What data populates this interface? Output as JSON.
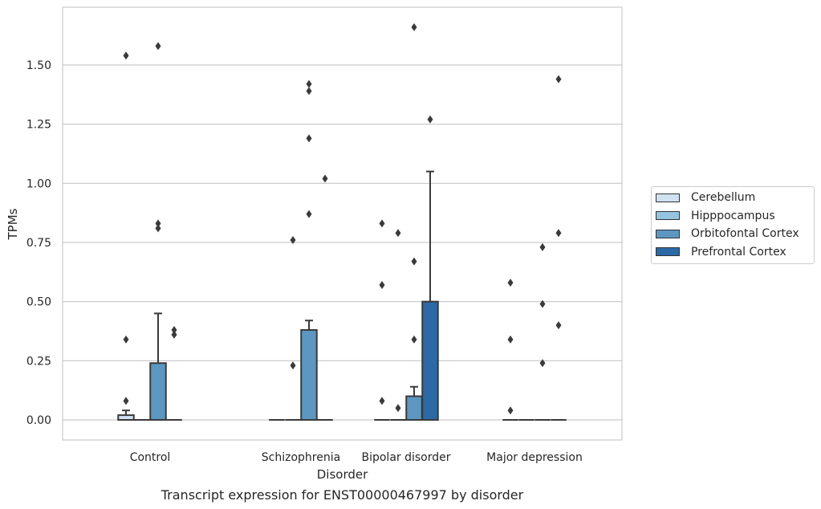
{
  "chart_data": {
    "type": "boxplot",
    "title": "Transcript expression for ENST00000467997 by disorder",
    "xlabel": "Disorder",
    "ylabel": "TPMs",
    "ylim": [
      -0.08,
      1.73
    ],
    "yticks": [
      0.0,
      0.25,
      0.5,
      0.75,
      1.0,
      1.25,
      1.5
    ],
    "ytick_labels": [
      "0.00",
      "0.25",
      "0.50",
      "0.75",
      "1.00",
      "1.25",
      "1.50"
    ],
    "categories": [
      "Control",
      "Schizophrenia",
      "Bipolar disorder",
      "Major depression"
    ],
    "grid": "horizontal",
    "legend_position": "right",
    "series": [
      {
        "name": "Cerebellum",
        "color": "#d0e1f2",
        "boxes": [
          {
            "q1": 0.0,
            "median": 0.0,
            "q3": 0.02,
            "whisker_low": 0.0,
            "whisker_high": 0.04,
            "outliers": [
              0.08,
              0.34,
              1.54
            ]
          },
          {
            "q1": 0.0,
            "median": 0.0,
            "q3": 0.0,
            "whisker_low": 0.0,
            "whisker_high": 0.0,
            "outliers": []
          },
          {
            "q1": 0.0,
            "median": 0.0,
            "q3": 0.0,
            "whisker_low": 0.0,
            "whisker_high": 0.0,
            "outliers": [
              0.08,
              0.57,
              0.83
            ]
          },
          {
            "q1": 0.0,
            "median": 0.0,
            "q3": 0.0,
            "whisker_low": 0.0,
            "whisker_high": 0.0,
            "outliers": [
              0.04,
              0.34,
              0.58
            ]
          }
        ]
      },
      {
        "name": "Hipppocampus",
        "color": "#94c4df",
        "boxes": [
          {
            "q1": 0.0,
            "median": 0.0,
            "q3": 0.0,
            "whisker_low": 0.0,
            "whisker_high": 0.0,
            "outliers": []
          },
          {
            "q1": 0.0,
            "median": 0.0,
            "q3": 0.0,
            "whisker_low": 0.0,
            "whisker_high": 0.0,
            "outliers": [
              0.23,
              0.76
            ]
          },
          {
            "q1": 0.0,
            "median": 0.0,
            "q3": 0.0,
            "whisker_low": 0.0,
            "whisker_high": 0.0,
            "outliers": [
              0.05,
              0.79
            ]
          },
          {
            "q1": 0.0,
            "median": 0.0,
            "q3": 0.0,
            "whisker_low": 0.0,
            "whisker_high": 0.0,
            "outliers": []
          }
        ]
      },
      {
        "name": "Orbitofontal Cortex",
        "color": "#5b97c1",
        "boxes": [
          {
            "q1": 0.0,
            "median": 0.0,
            "q3": 0.24,
            "whisker_low": 0.0,
            "whisker_high": 0.45,
            "outliers": [
              0.81,
              0.83,
              1.58
            ]
          },
          {
            "q1": 0.0,
            "median": 0.0,
            "q3": 0.38,
            "whisker_low": 0.0,
            "whisker_high": 0.42,
            "outliers": [
              0.87,
              1.19,
              1.39,
              1.42
            ]
          },
          {
            "q1": 0.0,
            "median": 0.0,
            "q3": 0.1,
            "whisker_low": 0.0,
            "whisker_high": 0.14,
            "outliers": [
              0.34,
              0.67,
              1.66
            ]
          },
          {
            "q1": 0.0,
            "median": 0.0,
            "q3": 0.0,
            "whisker_low": 0.0,
            "whisker_high": 0.0,
            "outliers": [
              0.24,
              0.49,
              0.73
            ]
          }
        ]
      },
      {
        "name": "Prefrontal Cortex",
        "color": "#2b6aa6",
        "boxes": [
          {
            "q1": 0.0,
            "median": 0.0,
            "q3": 0.0,
            "whisker_low": 0.0,
            "whisker_high": 0.0,
            "outliers": [
              0.36,
              0.38
            ]
          },
          {
            "q1": 0.0,
            "median": 0.0,
            "q3": 0.0,
            "whisker_low": 0.0,
            "whisker_high": 0.0,
            "outliers": [
              1.02
            ]
          },
          {
            "q1": 0.0,
            "median": 0.0,
            "q3": 0.5,
            "whisker_low": 0.0,
            "whisker_high": 1.05,
            "outliers": [
              1.27
            ]
          },
          {
            "q1": 0.0,
            "median": 0.0,
            "q3": 0.0,
            "whisker_low": 0.0,
            "whisker_high": 0.0,
            "outliers": [
              0.4,
              0.79,
              1.44
            ]
          }
        ]
      }
    ]
  }
}
